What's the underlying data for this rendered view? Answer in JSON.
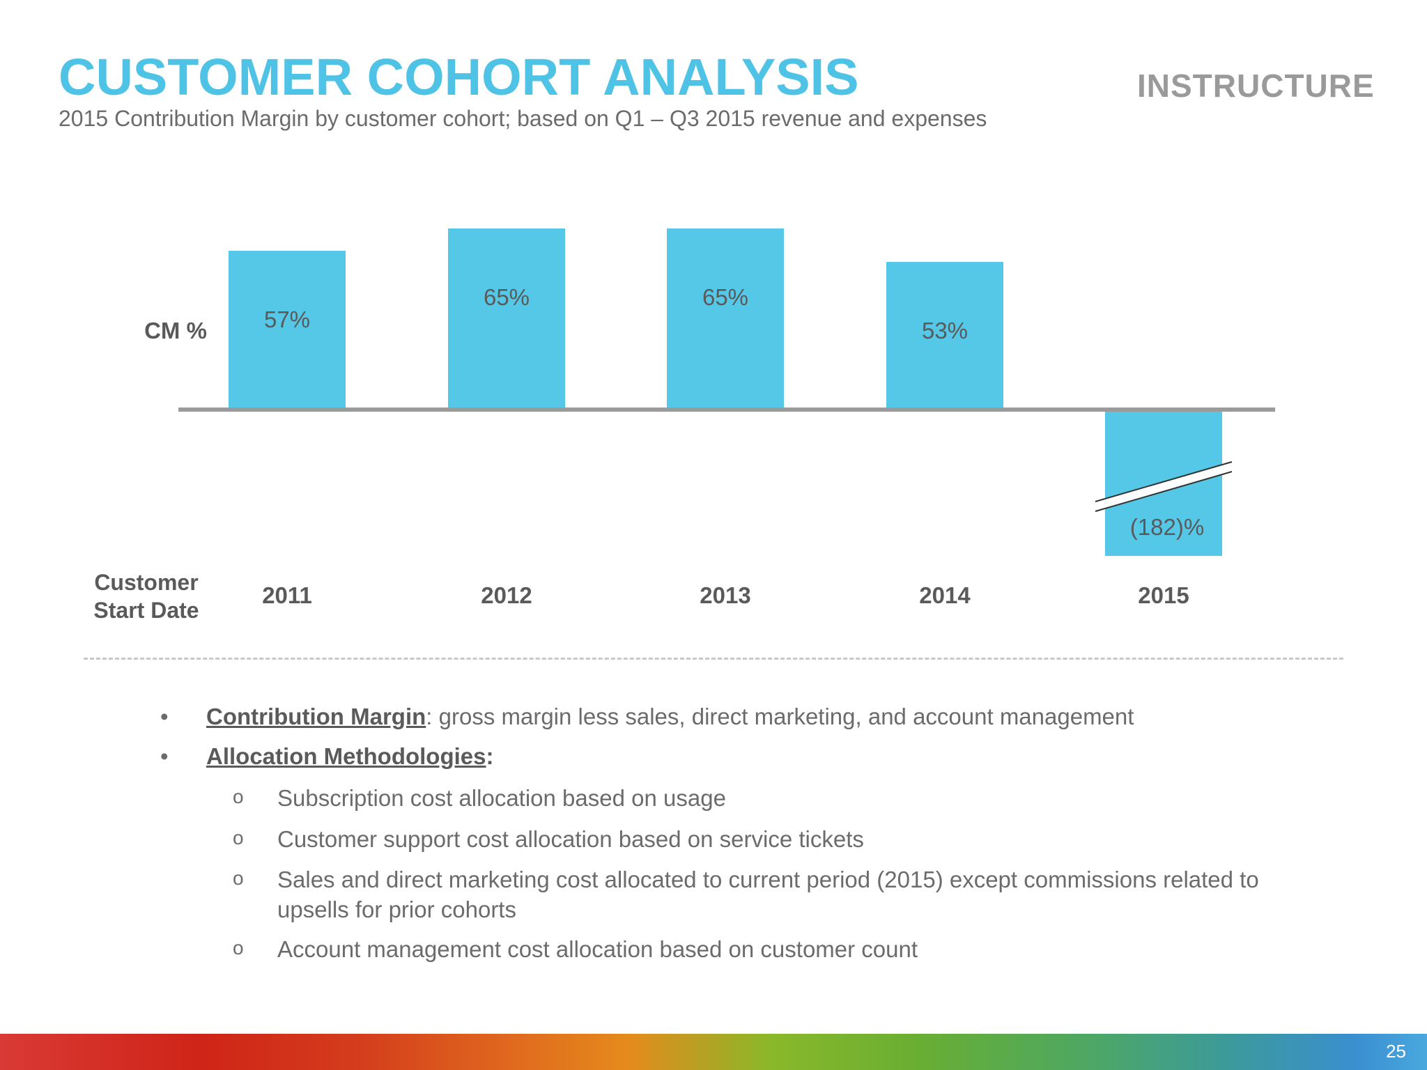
{
  "slide": {
    "title": "CUSTOMER COHORT ANALYSIS",
    "subtitle": "2015 Contribution Margin by customer cohort; based on Q1 – Q3 2015 revenue and expenses",
    "logo_text": "INSTRUCTURE",
    "page_number": "25"
  },
  "chart_data": {
    "type": "bar",
    "row_label": "CM %",
    "xlabel": "Customer Start Date",
    "categories": [
      "2011",
      "2012",
      "2013",
      "2014",
      "2015"
    ],
    "values": [
      57,
      65,
      65,
      53,
      -182
    ],
    "data_labels": [
      "57%",
      "65%",
      "65%",
      "53%",
      "(182)%"
    ],
    "axis_break_on": "2015",
    "bar_color": "#55c8e8"
  },
  "notes": {
    "bullet_char": "•",
    "sub_bullet_char": "o",
    "items": [
      {
        "term": "Contribution Margin",
        "separator": ":",
        "text": " gross margin less sales, direct marketing, and account management"
      },
      {
        "term": "Allocation Methodologies",
        "separator": ":",
        "text": ""
      }
    ],
    "sub_items": [
      "Subscription cost allocation based on usage",
      "Customer support cost allocation based on service tickets",
      "Sales and direct marketing cost allocated to current period (2015) except commissions related to upsells for prior cohorts",
      "Account management cost allocation based on customer count"
    ]
  }
}
